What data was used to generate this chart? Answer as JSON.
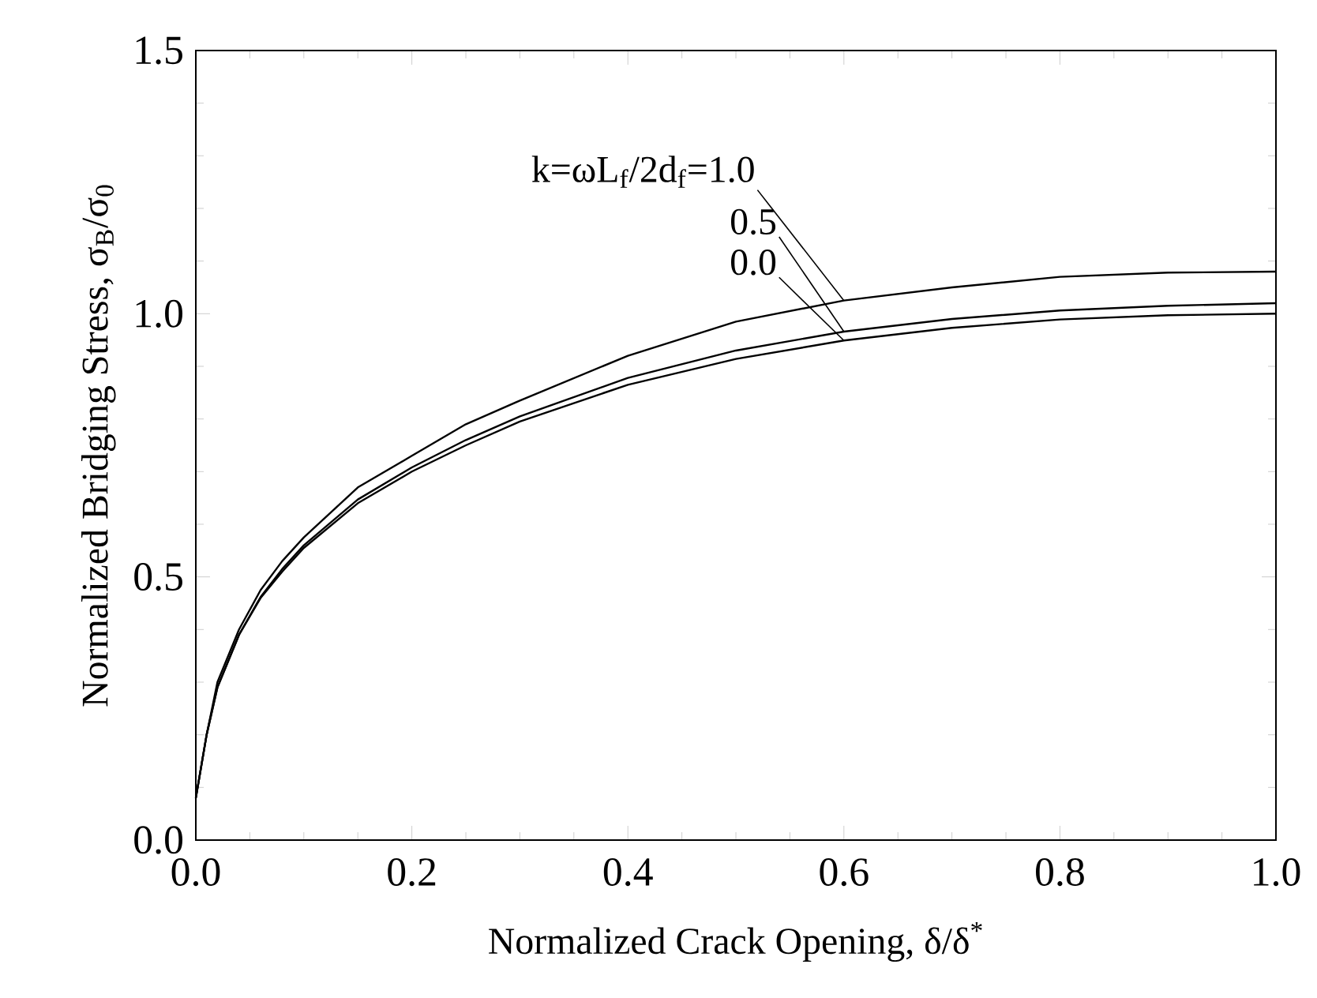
{
  "chart_data": {
    "type": "line",
    "xlabel": "Normalized Crack Opening, δ/δ$^{*}$",
    "ylabel": "Normalized Bridging Stress, σ$_{B}$/σ$_{0}$",
    "x": [
      0,
      0.005,
      0.01,
      0.02,
      0.04,
      0.06,
      0.08,
      0.1,
      0.15,
      0.2,
      0.25,
      0.3,
      0.4,
      0.5,
      0.6,
      0.7,
      0.8,
      0.9,
      1.0
    ],
    "series": [
      {
        "name": "k=ωL$_{f}$/2d$_{f}$=1.0",
        "color": "#000000",
        "values": [
          0.08,
          0.14,
          0.2,
          0.3,
          0.4,
          0.475,
          0.53,
          0.575,
          0.67,
          0.73,
          0.79,
          0.835,
          0.92,
          0.985,
          1.025,
          1.05,
          1.07,
          1.078,
          1.08
        ]
      },
      {
        "name": "0.5",
        "color": "#000000",
        "values": [
          0.08,
          0.14,
          0.2,
          0.29,
          0.39,
          0.462,
          0.515,
          0.56,
          0.647,
          0.708,
          0.76,
          0.805,
          0.878,
          0.93,
          0.966,
          0.99,
          1.006,
          1.015,
          1.02
        ]
      },
      {
        "name": "0.0",
        "color": "#000000",
        "values": [
          0.08,
          0.14,
          0.2,
          0.29,
          0.39,
          0.46,
          0.51,
          0.555,
          0.64,
          0.7,
          0.75,
          0.795,
          0.865,
          0.914,
          0.949,
          0.973,
          0.989,
          0.997,
          1.0
        ]
      }
    ],
    "xlim": [
      0,
      1.0
    ],
    "ylim": [
      0,
      1.5
    ],
    "xticks": [
      {
        "value": 0,
        "label": "0.0"
      },
      0.2,
      0.4,
      0.6,
      0.8,
      {
        "value": 1.0,
        "label": "1.0"
      }
    ],
    "yticks": [
      {
        "value": 0,
        "label": "0.0"
      },
      0.5,
      {
        "value": 1.0,
        "label": "1.0"
      },
      1.5
    ],
    "grid": false
  }
}
